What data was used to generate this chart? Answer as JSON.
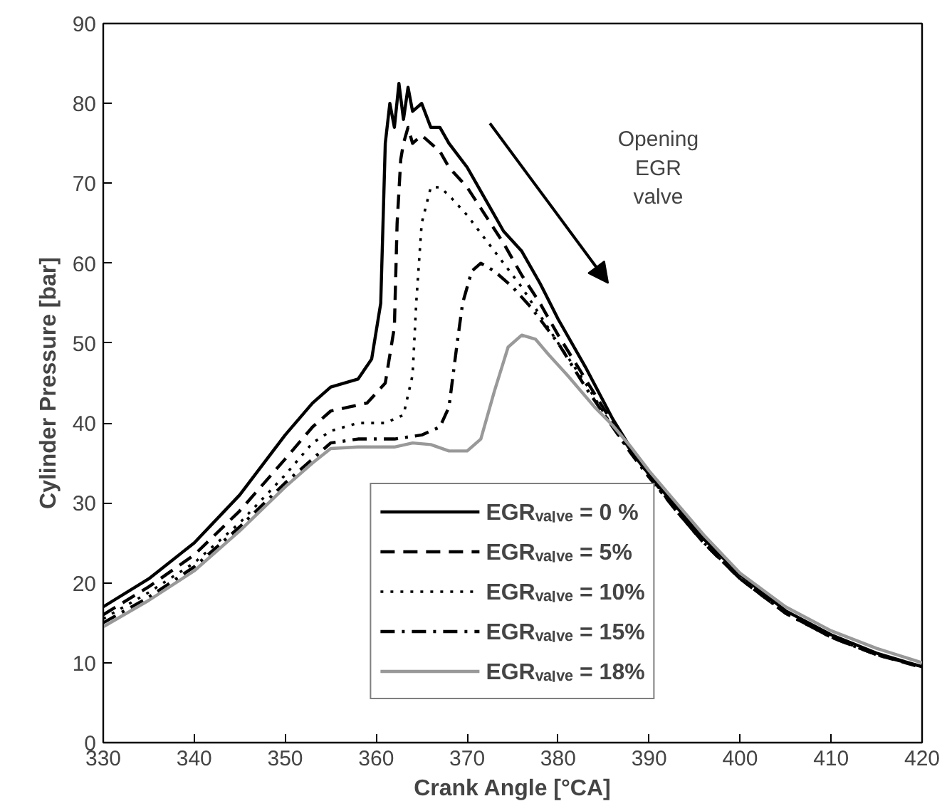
{
  "chart_data": {
    "type": "line",
    "xlabel": "Crank Angle [°CA]",
    "ylabel": "Cylinder Pressure [bar]",
    "xlim": [
      330,
      420
    ],
    "ylim": [
      0,
      90
    ],
    "xticks": [
      330,
      340,
      350,
      360,
      370,
      380,
      390,
      400,
      410,
      420
    ],
    "yticks": [
      0,
      10,
      20,
      30,
      40,
      50,
      60,
      70,
      80,
      90
    ],
    "grid": false,
    "legend": "bottom",
    "marker": "none",
    "annotations": [
      "Opening\nEGR\nvalve"
    ],
    "series": [
      {
        "name": "EGRᵥₐₗᵥₑ = 0 %",
        "color": "#000000",
        "line_style": "solid",
        "x": [
          330,
          335,
          340,
          345,
          350,
          353,
          355,
          358,
          359.5,
          360.5,
          361,
          361.5,
          362,
          362.5,
          363,
          363.5,
          364,
          365,
          366,
          367,
          368,
          370,
          372,
          374,
          376,
          378,
          380,
          383,
          386,
          388,
          390,
          393,
          396,
          400,
          405,
          410,
          415,
          420
        ],
        "values": [
          17,
          20.5,
          25,
          31,
          38.5,
          42.5,
          44.5,
          45.5,
          48,
          55,
          75,
          80,
          77,
          82.5,
          78,
          82,
          79,
          80,
          77,
          77,
          75,
          72,
          68,
          64,
          61.5,
          57.5,
          53,
          47,
          40.5,
          36.8,
          33.5,
          29.5,
          25.5,
          21,
          16.5,
          13.5,
          11.2,
          9.5
        ]
      },
      {
        "name": "EGRᵥₐₗᵥₑ = 5%",
        "color": "#000000",
        "line_style": "dashed",
        "x": [
          330,
          335,
          340,
          345,
          350,
          353,
          355,
          357,
          359,
          361,
          362,
          362.3,
          362.7,
          363,
          363.5,
          364,
          365,
          366,
          367,
          368,
          370,
          372,
          374,
          376,
          378,
          380,
          383,
          386,
          388,
          390,
          393,
          396,
          400,
          405,
          410,
          415,
          420
        ],
        "values": [
          16,
          19.5,
          23.5,
          29,
          35.5,
          39.5,
          41.5,
          42,
          42.5,
          45,
          52,
          65,
          73,
          75,
          77,
          75,
          76,
          75,
          74,
          72,
          69.5,
          66,
          62.5,
          58.5,
          55,
          51,
          45.5,
          40,
          36.5,
          33.5,
          29,
          25,
          20.5,
          16.2,
          13.2,
          11,
          9.4
        ]
      },
      {
        "name": "EGRᵥₐₗᵥₑ = 10%",
        "color": "#000000",
        "line_style": "dotted",
        "x": [
          330,
          335,
          340,
          345,
          350,
          353,
          355,
          358,
          361,
          363,
          364,
          364.4,
          365,
          366,
          367,
          368,
          370,
          372,
          374,
          376,
          378,
          380,
          383,
          386,
          388,
          390,
          393,
          396,
          400,
          405,
          410,
          415,
          420
        ],
        "values": [
          15.5,
          18.8,
          22.5,
          27.5,
          33.5,
          37.5,
          39,
          40,
          40,
          41,
          46,
          55,
          65,
          69.5,
          69.5,
          68.5,
          66,
          63,
          60,
          57,
          53.5,
          50,
          45,
          39.5,
          36.2,
          33.2,
          29,
          25,
          20.5,
          16.2,
          13.2,
          11,
          9.5
        ]
      },
      {
        "name": "EGRᵥₐₗᵥₑ = 15%",
        "color": "#000000",
        "line_style": "dashdot",
        "x": [
          330,
          335,
          340,
          345,
          350,
          353,
          355,
          358,
          362,
          365,
          367,
          368,
          368.9,
          369.5,
          370.5,
          371.5,
          373,
          375,
          377,
          380,
          383,
          386,
          388,
          390,
          393,
          396,
          400,
          405,
          410,
          415,
          420
        ],
        "values": [
          15,
          18.2,
          22,
          27,
          32.5,
          35.5,
          37.5,
          38,
          38,
          38.5,
          39.5,
          42,
          50,
          55,
          59,
          60,
          59,
          57,
          54.5,
          50,
          44.5,
          39.5,
          36.2,
          33.2,
          29,
          25,
          20.5,
          16.2,
          13.2,
          11,
          9.5
        ]
      },
      {
        "name": "EGRᵥₐₗᵥₑ = 18%",
        "color": "#999999",
        "line_style": "solid",
        "x": [
          330,
          335,
          340,
          345,
          350,
          353,
          355,
          358,
          362,
          364,
          366,
          368,
          370,
          371.5,
          373,
          374.5,
          376,
          377.5,
          379,
          381,
          384,
          386,
          388,
          390,
          393,
          396,
          400,
          405,
          410,
          415,
          420
        ],
        "values": [
          14.5,
          17.8,
          21.5,
          26.5,
          32,
          35,
          36.8,
          37,
          37,
          37.5,
          37.3,
          36.5,
          36.5,
          38,
          44,
          49.5,
          51,
          50.5,
          48.5,
          46,
          42,
          39.7,
          37,
          34,
          30,
          26,
          21.2,
          17,
          14,
          11.8,
          10
        ]
      }
    ]
  }
}
